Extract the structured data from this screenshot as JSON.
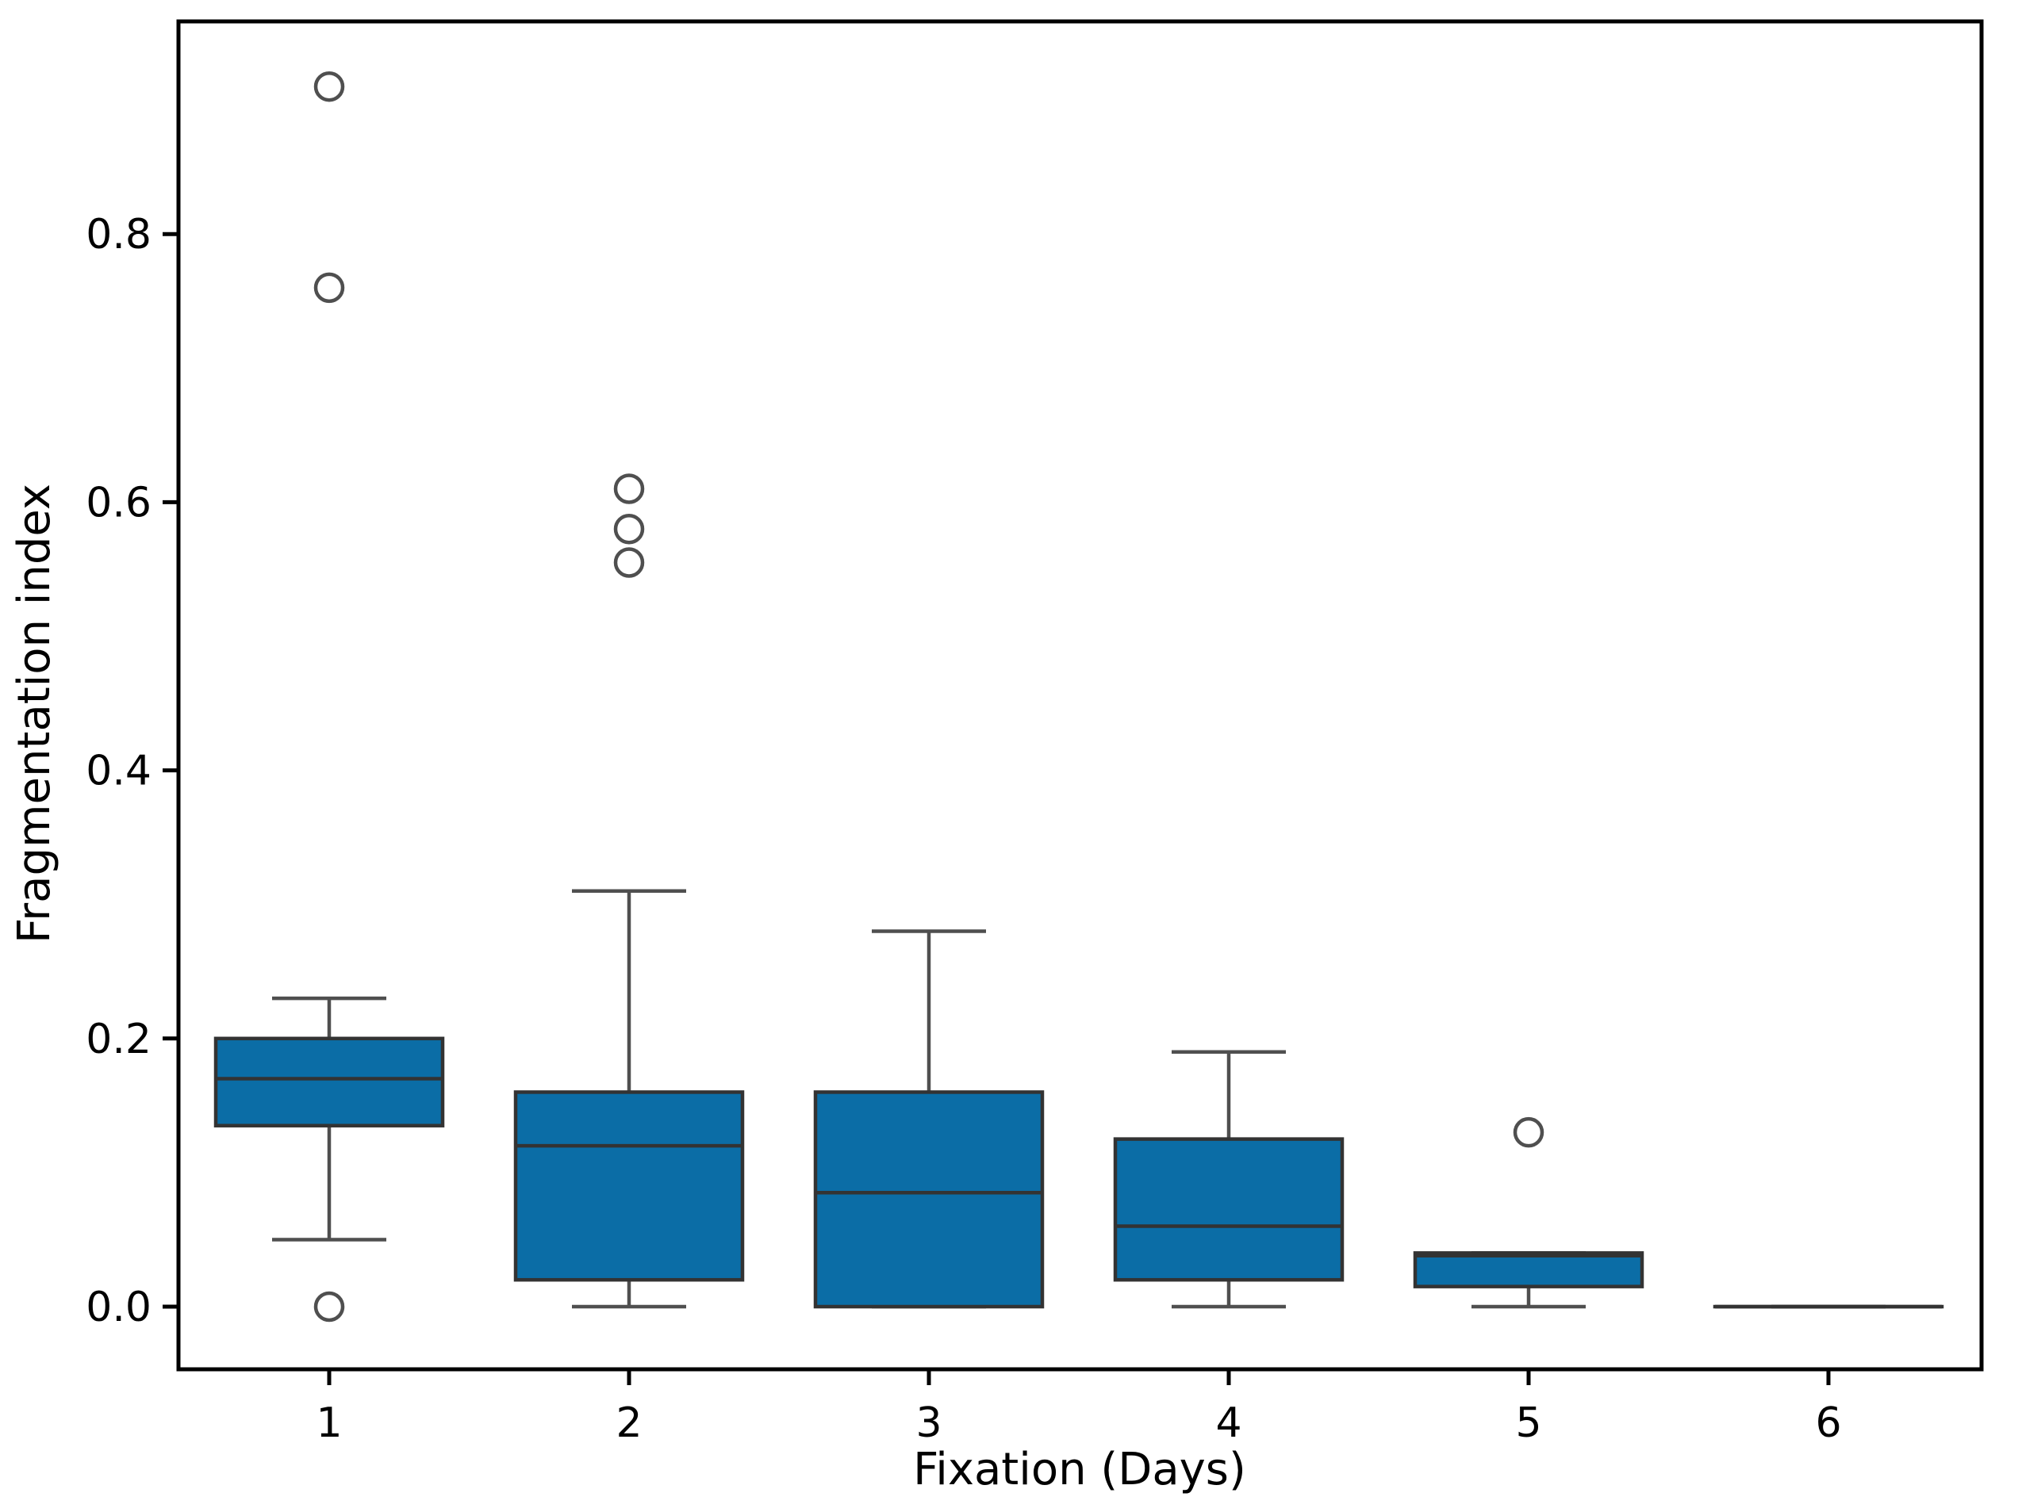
{
  "figure": {
    "xlabel": "Fixation (Days)",
    "ylabel": "Fragmentation index"
  },
  "chart_data": {
    "type": "box",
    "title": "",
    "xlabel": "Fixation (Days)",
    "ylabel": "Fragmentation index",
    "categories": [
      "1",
      "2",
      "3",
      "4",
      "5",
      "6"
    ],
    "yticks": [
      0.0,
      0.2,
      0.4,
      0.6,
      0.8
    ],
    "ytick_labels": [
      "0.0",
      "0.2",
      "0.4",
      "0.6",
      "0.8"
    ],
    "ylim": [
      -0.047,
      0.958
    ],
    "grid": false,
    "legend": null,
    "colors": {
      "box_fill": "#0b6da6",
      "box_edge": "#333333",
      "median": "#333333",
      "whisker": "#4f4f4f",
      "cap": "#4f4f4f",
      "flier_edge": "#4f4f4f",
      "axis": "#000000",
      "text": "#000000"
    },
    "series": [
      {
        "category": "1",
        "whislo": 0.05,
        "q1": 0.135,
        "med": 0.17,
        "q3": 0.2,
        "whishi": 0.23,
        "fliers": [
          0.0,
          0.76,
          0.91
        ]
      },
      {
        "category": "2",
        "whislo": 0.0,
        "q1": 0.02,
        "med": 0.12,
        "q3": 0.16,
        "whishi": 0.31,
        "fliers": [
          0.555,
          0.58,
          0.61
        ]
      },
      {
        "category": "3",
        "whislo": 0.0,
        "q1": 0.0,
        "med": 0.085,
        "q3": 0.16,
        "whishi": 0.28,
        "fliers": []
      },
      {
        "category": "4",
        "whislo": 0.0,
        "q1": 0.02,
        "med": 0.06,
        "q3": 0.125,
        "whishi": 0.19,
        "fliers": []
      },
      {
        "category": "5",
        "whislo": 0.0,
        "q1": 0.015,
        "med": 0.038,
        "q3": 0.04,
        "whishi": 0.04,
        "fliers": [
          0.13
        ]
      },
      {
        "category": "6",
        "whislo": 0.0,
        "q1": 0.0,
        "med": 0.0,
        "q3": 0.0,
        "whishi": 0.0,
        "fliers": []
      }
    ]
  }
}
